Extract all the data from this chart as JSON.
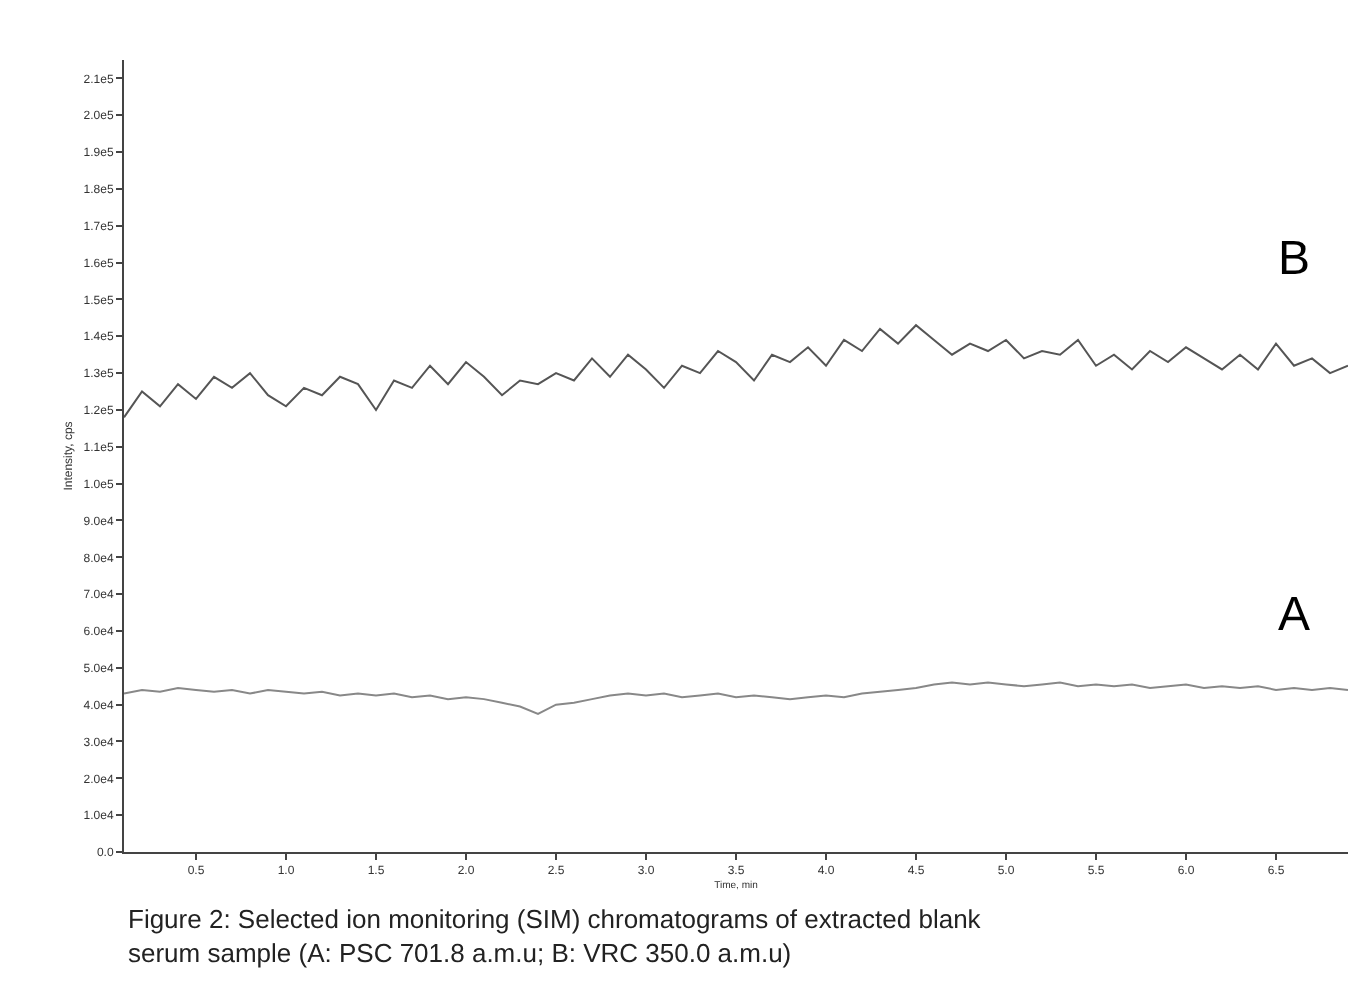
{
  "chart_data": {
    "type": "line",
    "xlabel": "Time, min",
    "ylabel": "Intensity, cps",
    "x": [
      0.1,
      0.2,
      0.3,
      0.4,
      0.5,
      0.6,
      0.7,
      0.8,
      0.9,
      1.0,
      1.1,
      1.2,
      1.3,
      1.4,
      1.5,
      1.6,
      1.7,
      1.8,
      1.9,
      2.0,
      2.1,
      2.2,
      2.3,
      2.4,
      2.5,
      2.6,
      2.7,
      2.8,
      2.9,
      3.0,
      3.1,
      3.2,
      3.3,
      3.4,
      3.5,
      3.6,
      3.7,
      3.8,
      3.9,
      4.0,
      4.1,
      4.2,
      4.3,
      4.4,
      4.5,
      4.6,
      4.7,
      4.8,
      4.9,
      5.0,
      5.1,
      5.2,
      5.3,
      5.4,
      5.5,
      5.6,
      5.7,
      5.8,
      5.9,
      6.0,
      6.1,
      6.2,
      6.3,
      6.4,
      6.5,
      6.6,
      6.7,
      6.8,
      6.9
    ],
    "series": [
      {
        "name": "B",
        "color": "#555555",
        "values": [
          118000,
          125000,
          121000,
          127000,
          123000,
          129000,
          126000,
          130000,
          124000,
          121000,
          126000,
          124000,
          129000,
          127000,
          120000,
          128000,
          126000,
          132000,
          127000,
          133000,
          129000,
          124000,
          128000,
          127000,
          130000,
          128000,
          134000,
          129000,
          135000,
          131000,
          126000,
          132000,
          130000,
          136000,
          133000,
          128000,
          135000,
          133000,
          137000,
          132000,
          139000,
          136000,
          142000,
          138000,
          143000,
          139000,
          135000,
          138000,
          136000,
          139000,
          134000,
          136000,
          135000,
          139000,
          132000,
          135000,
          131000,
          136000,
          133000,
          137000,
          134000,
          131000,
          135000,
          131000,
          138000,
          132000,
          134000,
          130000,
          132000
        ]
      },
      {
        "name": "A",
        "color": "#888888",
        "values": [
          43000,
          44000,
          43500,
          44500,
          44000,
          43500,
          44000,
          43000,
          44000,
          43500,
          43000,
          43500,
          42500,
          43000,
          42500,
          43000,
          42000,
          42500,
          41500,
          42000,
          41500,
          40500,
          39500,
          37500,
          40000,
          40500,
          41500,
          42500,
          43000,
          42500,
          43000,
          42000,
          42500,
          43000,
          42000,
          42500,
          42000,
          41500,
          42000,
          42500,
          42000,
          43000,
          43500,
          44000,
          44500,
          45500,
          46000,
          45500,
          46000,
          45500,
          45000,
          45500,
          46000,
          45000,
          45500,
          45000,
          45500,
          44500,
          45000,
          45500,
          44500,
          45000,
          44500,
          45000,
          44000,
          44500,
          44000,
          44500,
          44000
        ]
      }
    ],
    "xlim": [
      0.1,
      6.9
    ],
    "xticks": [
      0.5,
      {
        "value": 1,
        "label": "1.0"
      },
      1.5,
      {
        "value": 2,
        "label": "2.0"
      },
      2.5,
      {
        "value": 3,
        "label": "3.0"
      },
      3.5,
      {
        "value": 4,
        "label": "4.0"
      },
      4.5,
      {
        "value": 5,
        "label": "5.0"
      },
      5.5,
      {
        "value": 6,
        "label": "6.0"
      },
      6.5
    ],
    "ylim": [
      0,
      215000
    ],
    "yticks": [
      {
        "value": 0,
        "label": "0.0"
      },
      {
        "value": 10000,
        "label": "1.0e4"
      },
      {
        "value": 20000,
        "label": "2.0e4"
      },
      {
        "value": 30000,
        "label": "3.0e4"
      },
      {
        "value": 40000,
        "label": "4.0e4"
      },
      {
        "value": 50000,
        "label": "5.0e4"
      },
      {
        "value": 60000,
        "label": "6.0e4"
      },
      {
        "value": 70000,
        "label": "7.0e4"
      },
      {
        "value": 80000,
        "label": "8.0e4"
      },
      {
        "value": 90000,
        "label": "9.0e4"
      },
      {
        "value": 100000,
        "label": "1.0e5"
      },
      {
        "value": 110000,
        "label": "1.1e5"
      },
      {
        "value": 120000,
        "label": "1.2e5"
      },
      {
        "value": 130000,
        "label": "1.3e5"
      },
      {
        "value": 140000,
        "label": "1.4e5"
      },
      {
        "value": 150000,
        "label": "1.5e5"
      },
      {
        "value": 160000,
        "label": "1.6e5"
      },
      {
        "value": 170000,
        "label": "1.7e5"
      },
      {
        "value": 180000,
        "label": "1.8e5"
      },
      {
        "value": 190000,
        "label": "1.9e5"
      },
      {
        "value": 200000,
        "label": "2.0e5"
      },
      {
        "value": 210000,
        "label": "2.1e5"
      }
    ],
    "grid": false,
    "legend": false,
    "marker": "none",
    "line_style": "solid",
    "annotations": [
      "Figure 2: Selected ion monitoring (SIM) chromatograms of extracted blank serum sample (A: PSC 701.8 a.m.u; B: VRC 350.0 a.m.u)"
    ]
  }
}
